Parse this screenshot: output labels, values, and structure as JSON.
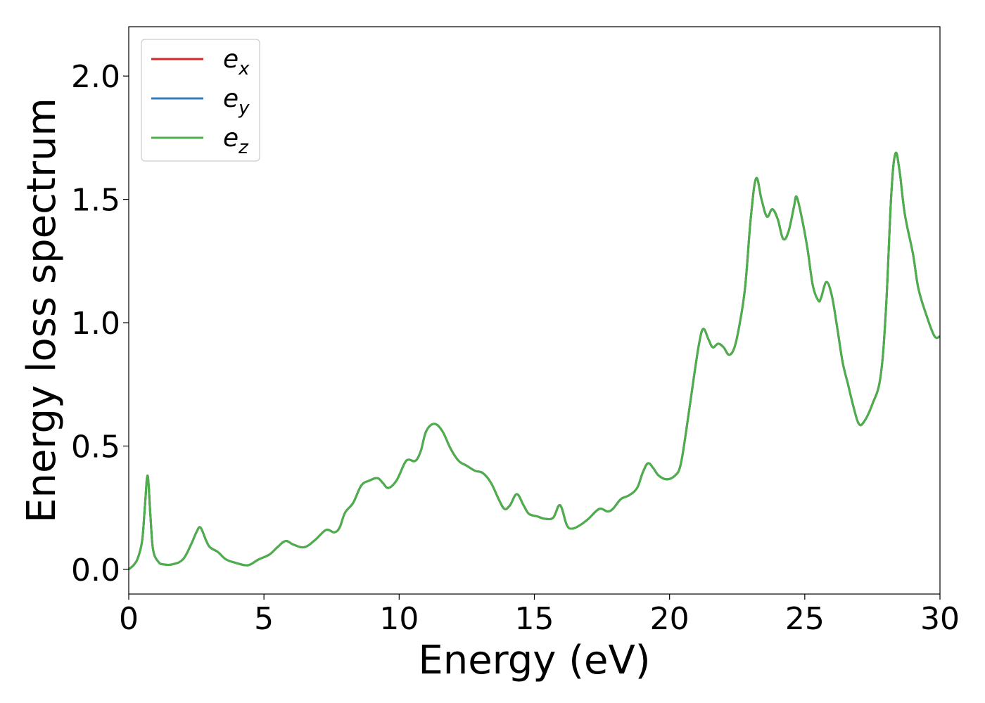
{
  "chart_data": {
    "type": "line",
    "title": "",
    "xlabel": "Energy (eV)",
    "ylabel": "Energy loss spectrum",
    "xlim": [
      0,
      30
    ],
    "ylim": [
      -0.1,
      2.2
    ],
    "xticks": [
      0,
      5,
      10,
      15,
      20,
      25,
      30
    ],
    "xtick_labels": [
      "0",
      "5",
      "10",
      "15",
      "20",
      "25",
      "30"
    ],
    "yticks": [
      0.0,
      0.5,
      1.0,
      1.5,
      2.0
    ],
    "ytick_labels": [
      "0.0",
      "0.5",
      "1.0",
      "1.5",
      "2.0"
    ],
    "grid": false,
    "legend_position": "top-left",
    "series": [
      {
        "name": "e_x",
        "legend_base": "e",
        "legend_sub": "x",
        "color": "#d62728",
        "points": "shared"
      },
      {
        "name": "e_y",
        "legend_base": "e",
        "legend_sub": "y",
        "color": "#377eb8",
        "points": "shared"
      },
      {
        "name": "e_z",
        "legend_base": "e",
        "legend_sub": "z",
        "color": "#4daf4a",
        "points": "shared"
      }
    ],
    "shared_points": [
      [
        0.0,
        0.0
      ],
      [
        0.2,
        0.02
      ],
      [
        0.35,
        0.05
      ],
      [
        0.5,
        0.12
      ],
      [
        0.6,
        0.26
      ],
      [
        0.7,
        0.38
      ],
      [
        0.8,
        0.22
      ],
      [
        0.9,
        0.08
      ],
      [
        1.1,
        0.03
      ],
      [
        1.3,
        0.02
      ],
      [
        1.6,
        0.02
      ],
      [
        2.0,
        0.04
      ],
      [
        2.3,
        0.1
      ],
      [
        2.5,
        0.15
      ],
      [
        2.65,
        0.17
      ],
      [
        2.85,
        0.12
      ],
      [
        3.0,
        0.09
      ],
      [
        3.3,
        0.07
      ],
      [
        3.6,
        0.04
      ],
      [
        4.0,
        0.025
      ],
      [
        4.3,
        0.017
      ],
      [
        4.5,
        0.02
      ],
      [
        4.8,
        0.04
      ],
      [
        5.2,
        0.06
      ],
      [
        5.5,
        0.09
      ],
      [
        5.8,
        0.115
      ],
      [
        6.1,
        0.1
      ],
      [
        6.5,
        0.09
      ],
      [
        6.9,
        0.12
      ],
      [
        7.3,
        0.16
      ],
      [
        7.6,
        0.15
      ],
      [
        7.8,
        0.17
      ],
      [
        8.0,
        0.23
      ],
      [
        8.3,
        0.27
      ],
      [
        8.6,
        0.34
      ],
      [
        8.9,
        0.36
      ],
      [
        9.2,
        0.37
      ],
      [
        9.4,
        0.35
      ],
      [
        9.6,
        0.33
      ],
      [
        9.9,
        0.36
      ],
      [
        10.2,
        0.43
      ],
      [
        10.35,
        0.445
      ],
      [
        10.6,
        0.44
      ],
      [
        10.8,
        0.48
      ],
      [
        11.0,
        0.56
      ],
      [
        11.3,
        0.59
      ],
      [
        11.6,
        0.56
      ],
      [
        11.9,
        0.49
      ],
      [
        12.2,
        0.44
      ],
      [
        12.5,
        0.42
      ],
      [
        12.8,
        0.4
      ],
      [
        13.1,
        0.39
      ],
      [
        13.4,
        0.35
      ],
      [
        13.7,
        0.28
      ],
      [
        13.9,
        0.245
      ],
      [
        14.1,
        0.26
      ],
      [
        14.35,
        0.305
      ],
      [
        14.6,
        0.26
      ],
      [
        14.8,
        0.225
      ],
      [
        15.1,
        0.215
      ],
      [
        15.4,
        0.205
      ],
      [
        15.7,
        0.21
      ],
      [
        15.95,
        0.26
      ],
      [
        16.2,
        0.18
      ],
      [
        16.4,
        0.165
      ],
      [
        16.7,
        0.18
      ],
      [
        17.0,
        0.205
      ],
      [
        17.4,
        0.245
      ],
      [
        17.7,
        0.235
      ],
      [
        17.9,
        0.245
      ],
      [
        18.2,
        0.285
      ],
      [
        18.5,
        0.3
      ],
      [
        18.8,
        0.33
      ],
      [
        19.0,
        0.39
      ],
      [
        19.2,
        0.43
      ],
      [
        19.4,
        0.41
      ],
      [
        19.6,
        0.38
      ],
      [
        19.9,
        0.365
      ],
      [
        20.2,
        0.38
      ],
      [
        20.4,
        0.42
      ],
      [
        20.6,
        0.55
      ],
      [
        20.9,
        0.78
      ],
      [
        21.1,
        0.92
      ],
      [
        21.25,
        0.975
      ],
      [
        21.45,
        0.93
      ],
      [
        21.6,
        0.9
      ],
      [
        21.8,
        0.915
      ],
      [
        22.0,
        0.9
      ],
      [
        22.2,
        0.87
      ],
      [
        22.4,
        0.9
      ],
      [
        22.6,
        1.0
      ],
      [
        22.8,
        1.15
      ],
      [
        23.0,
        1.42
      ],
      [
        23.2,
        1.585
      ],
      [
        23.4,
        1.5
      ],
      [
        23.6,
        1.43
      ],
      [
        23.8,
        1.46
      ],
      [
        24.0,
        1.42
      ],
      [
        24.2,
        1.34
      ],
      [
        24.4,
        1.37
      ],
      [
        24.6,
        1.47
      ],
      [
        24.7,
        1.51
      ],
      [
        24.9,
        1.42
      ],
      [
        25.1,
        1.3
      ],
      [
        25.3,
        1.15
      ],
      [
        25.5,
        1.09
      ],
      [
        25.6,
        1.1
      ],
      [
        25.8,
        1.165
      ],
      [
        26.0,
        1.11
      ],
      [
        26.2,
        0.98
      ],
      [
        26.4,
        0.84
      ],
      [
        26.6,
        0.75
      ],
      [
        26.8,
        0.66
      ],
      [
        27.0,
        0.59
      ],
      [
        27.2,
        0.6
      ],
      [
        27.5,
        0.67
      ],
      [
        27.8,
        0.78
      ],
      [
        28.0,
        1.05
      ],
      [
        28.2,
        1.52
      ],
      [
        28.35,
        1.685
      ],
      [
        28.5,
        1.62
      ],
      [
        28.7,
        1.44
      ],
      [
        29.0,
        1.28
      ],
      [
        29.2,
        1.14
      ],
      [
        29.5,
        1.03
      ],
      [
        29.8,
        0.945
      ],
      [
        30.0,
        0.945
      ]
    ]
  }
}
